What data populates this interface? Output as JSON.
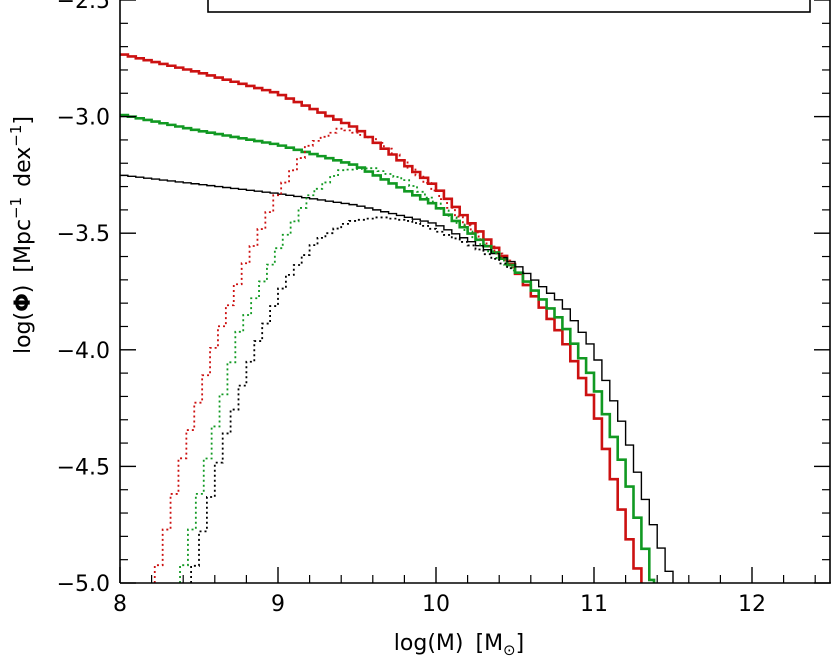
{
  "chart_data": {
    "type": "line",
    "xlabel": "log(M)",
    "xlabel_unit": "M",
    "xlabel_unit_sub": "⊙",
    "ylabel_main": "log(",
    "ylabel_phi": "Φ",
    "ylabel_close": ")",
    "ylabel_unit_a": "Mpc",
    "ylabel_unit_a_sup": "−1",
    "ylabel_unit_b": "dex",
    "ylabel_unit_b_sup": "−1",
    "xlim": [
      8,
      12.5
    ],
    "ylim": [
      -5.0,
      -2.5
    ],
    "xticks": [
      8,
      9,
      10,
      11,
      12
    ],
    "xtick_labels": [
      "8",
      "9",
      "10",
      "11",
      "12"
    ],
    "yticks": [
      -5.0,
      -4.5,
      -4.0,
      -3.5,
      -3.0,
      -2.5
    ],
    "ytick_labels": [
      "−5.0",
      "−4.5",
      "−4.0",
      "−3.5",
      "−3.0",
      "−2.5"
    ],
    "legend_box": "top",
    "series": [
      {
        "color": "#cc1111",
        "style": "solid",
        "step": true,
        "x": [
          8.0,
          8.5,
          9.0,
          9.5,
          10.0,
          10.5,
          10.8,
          11.0,
          11.2,
          11.3
        ],
        "y": [
          -2.73,
          -2.81,
          -2.9,
          -3.05,
          -3.3,
          -3.65,
          -3.94,
          -4.23,
          -4.75,
          -5.0
        ]
      },
      {
        "color": "#119922",
        "style": "solid",
        "step": true,
        "x": [
          8.0,
          8.5,
          9.0,
          9.5,
          10.0,
          10.5,
          10.8,
          11.0,
          11.2,
          11.38
        ],
        "y": [
          -2.99,
          -3.06,
          -3.12,
          -3.21,
          -3.38,
          -3.65,
          -3.88,
          -4.13,
          -4.52,
          -5.0
        ]
      },
      {
        "color": "#000000",
        "style": "solid",
        "step": true,
        "x": [
          8.0,
          8.5,
          9.0,
          9.5,
          10.0,
          10.5,
          10.8,
          11.0,
          11.2,
          11.35,
          11.5
        ],
        "y": [
          -3.25,
          -3.29,
          -3.33,
          -3.38,
          -3.46,
          -3.63,
          -3.8,
          -4.0,
          -4.35,
          -4.7,
          -5.0
        ]
      },
      {
        "color": "#cc1111",
        "style": "dotted",
        "step": true,
        "x": [
          8.22,
          8.4,
          8.6,
          8.8,
          9.0,
          9.2,
          9.4,
          9.6,
          9.8,
          10.0,
          10.2,
          10.5
        ],
        "y": [
          -5.0,
          -4.45,
          -3.98,
          -3.62,
          -3.33,
          -3.12,
          -3.05,
          -3.09,
          -3.19,
          -3.32,
          -3.47,
          -3.65
        ]
      },
      {
        "color": "#119922",
        "style": "dotted",
        "step": true,
        "x": [
          8.38,
          8.55,
          8.75,
          9.0,
          9.2,
          9.4,
          9.6,
          9.8,
          10.0,
          10.2,
          10.5
        ],
        "y": [
          -5.0,
          -4.48,
          -3.93,
          -3.57,
          -3.34,
          -3.23,
          -3.22,
          -3.27,
          -3.37,
          -3.49,
          -3.66
        ]
      },
      {
        "color": "#000000",
        "style": "dotted",
        "step": true,
        "x": [
          8.45,
          8.65,
          8.85,
          9.05,
          9.25,
          9.45,
          9.65,
          9.85,
          10.05,
          10.25,
          10.5
        ],
        "y": [
          -5.0,
          -4.41,
          -4.0,
          -3.7,
          -3.53,
          -3.45,
          -3.43,
          -3.45,
          -3.5,
          -3.56,
          -3.66
        ]
      }
    ]
  }
}
